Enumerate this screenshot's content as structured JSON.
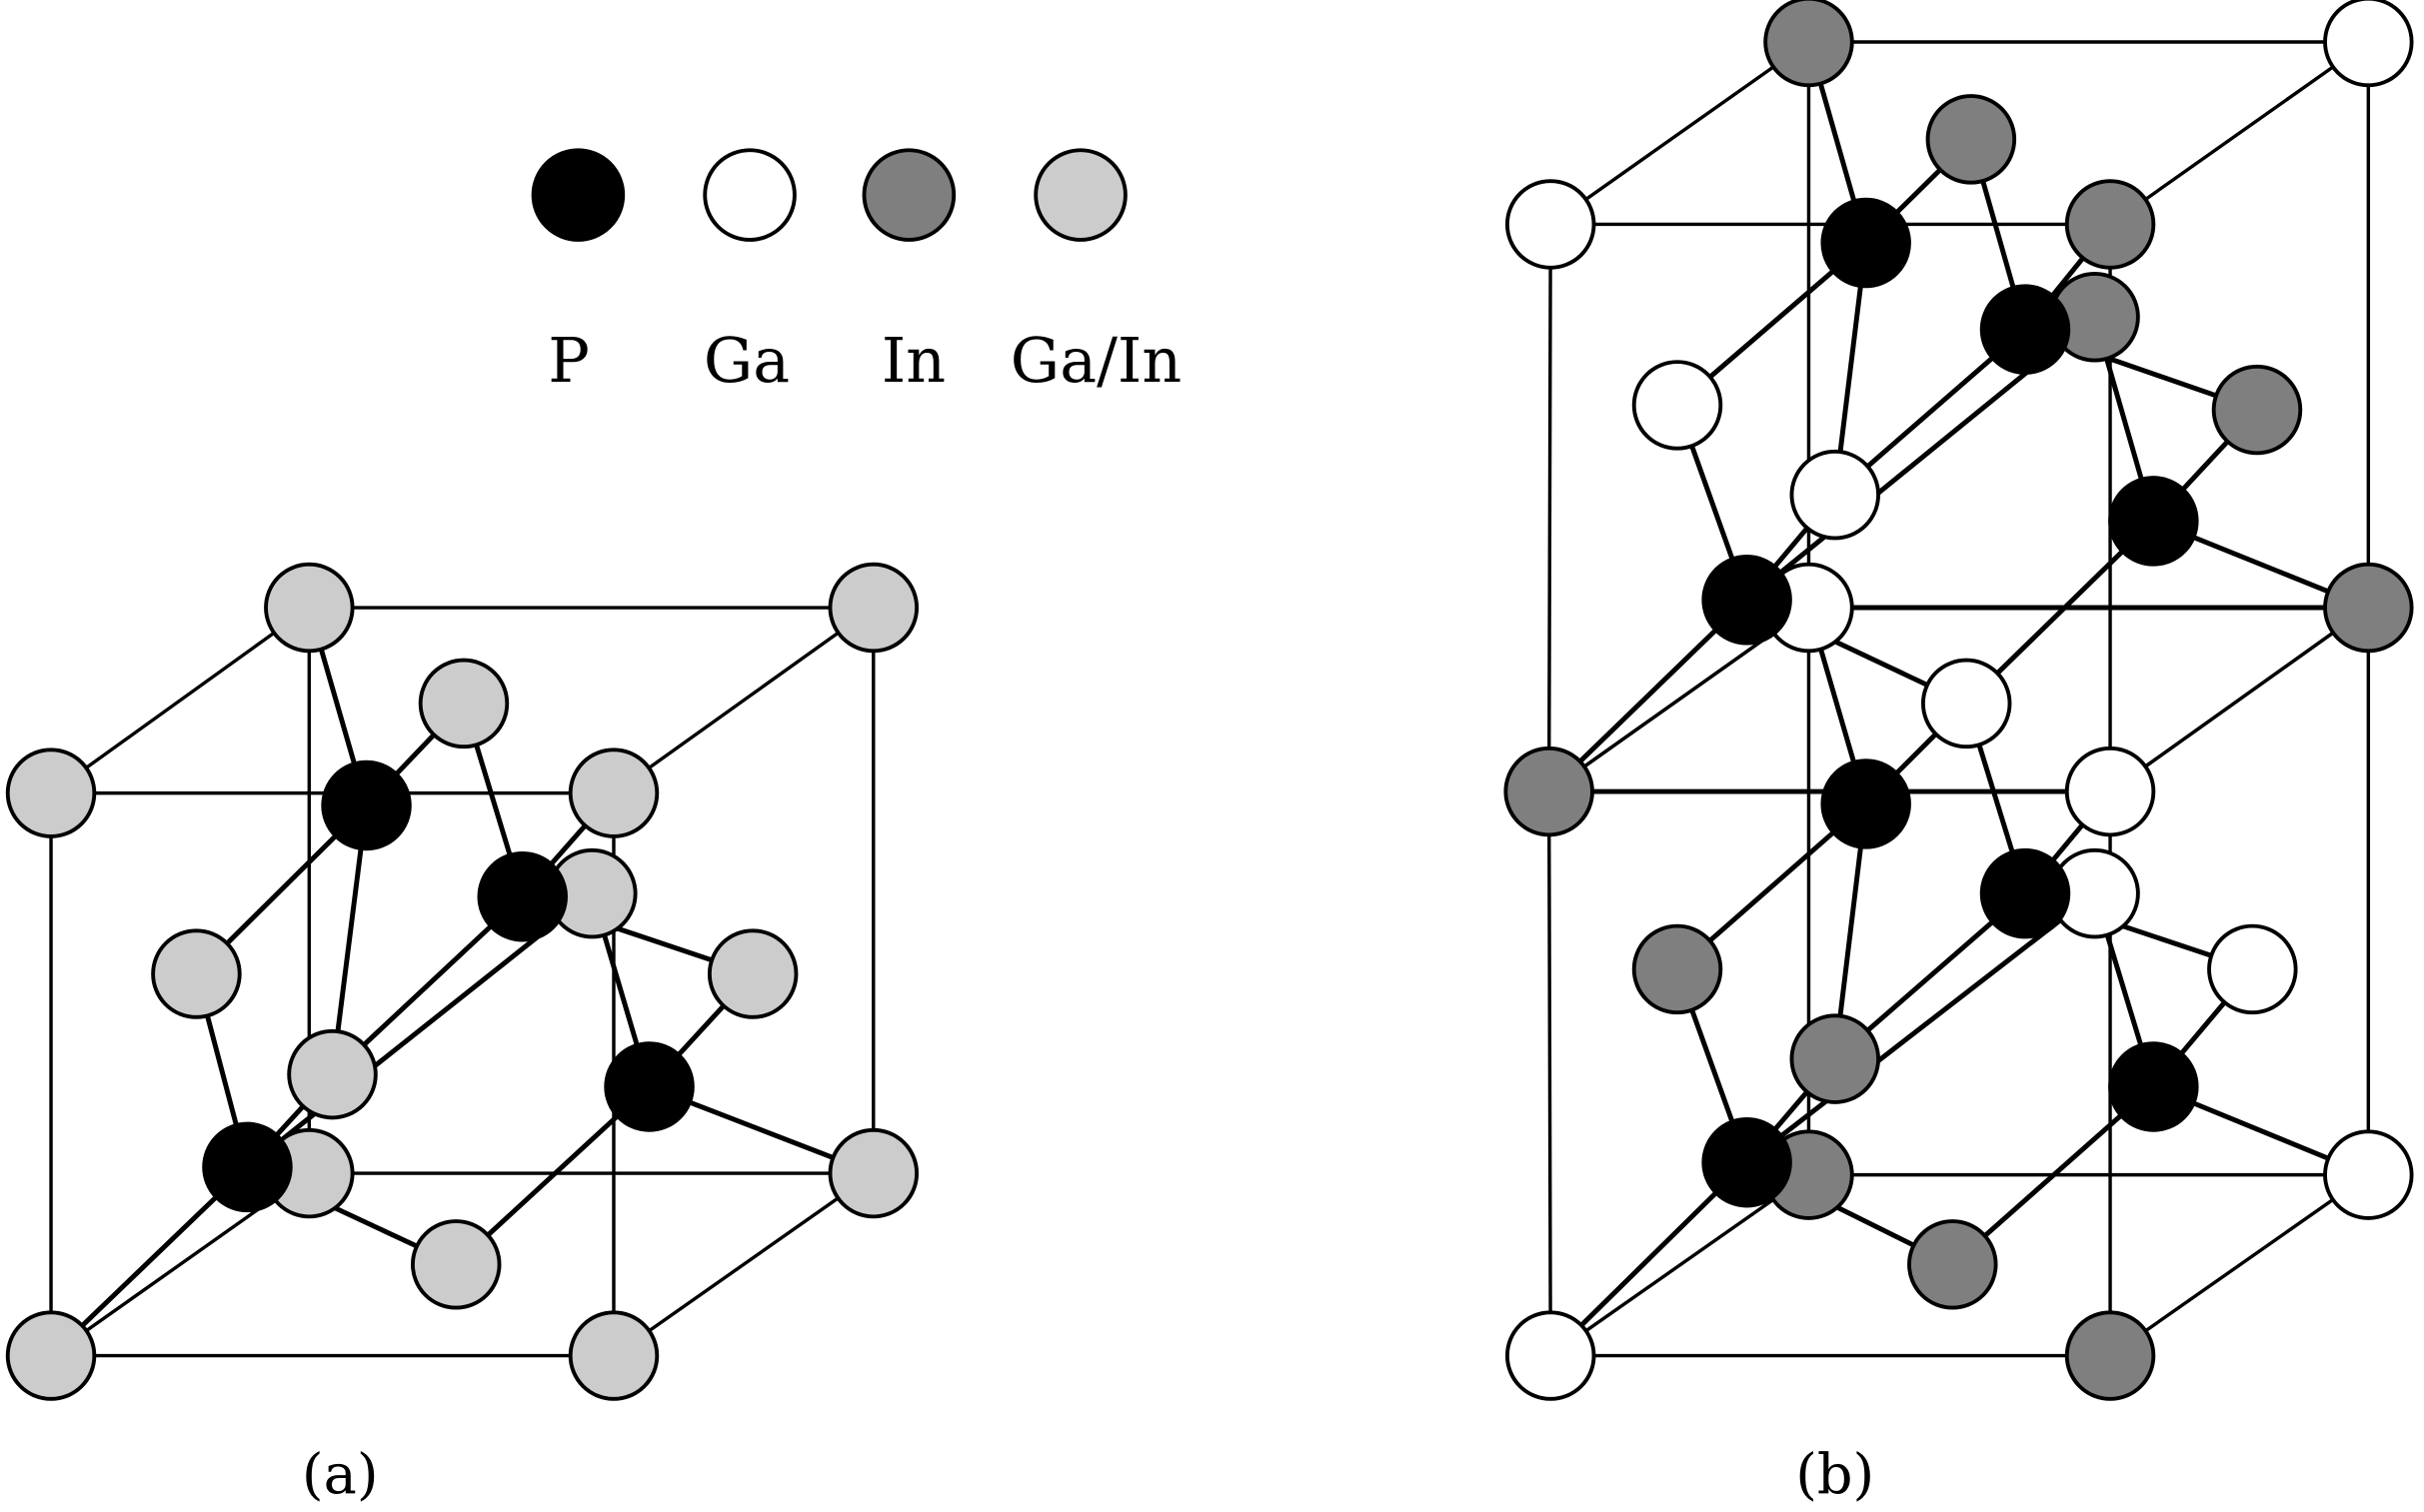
{
  "colors": {
    "P": "#000000",
    "Ga": "#ffffff",
    "In": "#7f7f7f",
    "Ga/In": "#cccccc",
    "stroke": "#000000"
  },
  "legend": [
    {
      "species": "P",
      "label": "P"
    },
    {
      "species": "Ga",
      "label": "Ga"
    },
    {
      "species": "In",
      "label": "In"
    },
    {
      "species": "Ga/In",
      "label": "Ga/In"
    }
  ],
  "panels": [
    {
      "id": "a",
      "label": "(a)"
    },
    {
      "id": "b",
      "label": "(b)"
    }
  ]
}
